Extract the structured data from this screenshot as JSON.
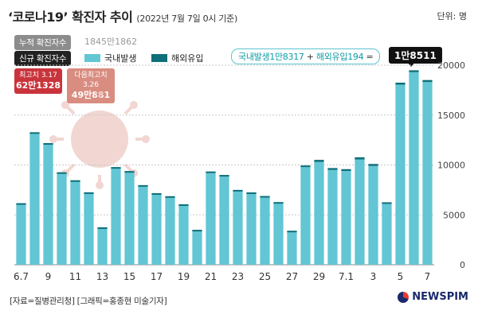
{
  "header": {
    "title_main": "‘코로나19’ 확진자 추이",
    "title_sub": "(2022년 7월 7일 0시 기준)",
    "unit": "단위: 명"
  },
  "summary": {
    "cumulative_label": "누적 확진자수",
    "cumulative_value": "1845만1862",
    "new_label": "신규 확진자수"
  },
  "legend": {
    "domestic": "국내발생",
    "imported": "해외유입"
  },
  "highlight": {
    "domestic": "국내발생1만8317",
    "plus": "+",
    "imported": "해외유입194",
    "equals": "=",
    "total": "1만8511"
  },
  "peaks": [
    {
      "label": "최고치 3.17",
      "value": "62만1328"
    },
    {
      "label": "다음최고치 3.26",
      "value": "49만881"
    }
  ],
  "footer": {
    "source": "[자료=질병관리청] [그래픽=홍종현 미술기자]",
    "logo": "NEWSPIM"
  },
  "colors": {
    "domestic": "#62c6d4",
    "imported": "#0e6f78",
    "peak1": "#c9343c",
    "peak2": "#d98c80",
    "grid": "#c8c8c8"
  },
  "chart_data": {
    "type": "bar",
    "stacked": true,
    "title": "‘코로나19’ 확진자 추이",
    "categories": [
      "6.7",
      "6.8",
      "6.9",
      "6.10",
      "6.11",
      "6.12",
      "6.13",
      "6.14",
      "6.15",
      "6.16",
      "6.17",
      "6.18",
      "6.19",
      "6.20",
      "6.21",
      "6.22",
      "6.23",
      "6.24",
      "6.25",
      "6.26",
      "6.27",
      "6.28",
      "6.29",
      "6.30",
      "7.1",
      "7.2",
      "7.3",
      "7.4",
      "7.5",
      "7.6",
      "7.7"
    ],
    "x_tick_labels": [
      "6.7",
      "",
      "9",
      "",
      "11",
      "",
      "13",
      "",
      "15",
      "",
      "17",
      "",
      "19",
      "",
      "21",
      "",
      "23",
      "",
      "25",
      "",
      "27",
      "",
      "29",
      "",
      "7.1",
      "",
      "3",
      "",
      "5",
      "",
      "7"
    ],
    "series": [
      {
        "name": "국내발생",
        "values": [
          6100,
          13200,
          12100,
          9200,
          8400,
          7200,
          3700,
          9700,
          9300,
          7900,
          7100,
          6800,
          6000,
          3450,
          9250,
          8900,
          7400,
          7150,
          6800,
          6200,
          3350,
          9800,
          10300,
          9500,
          9400,
          10550,
          9900,
          6150,
          18050,
          19300,
          18317
        ]
      },
      {
        "name": "해외유입",
        "values": [
          70,
          80,
          90,
          70,
          70,
          60,
          50,
          90,
          90,
          80,
          70,
          70,
          60,
          50,
          100,
          100,
          100,
          100,
          90,
          80,
          60,
          150,
          210,
          190,
          180,
          220,
          200,
          110,
          200,
          190,
          194
        ]
      }
    ],
    "y_ticks": [
      0,
      5000,
      10000,
      15000,
      20000
    ],
    "y_tick_labels": [
      "0",
      "5000",
      "10000",
      "15000",
      "20000"
    ],
    "ylim": [
      0,
      20000
    ],
    "xlabel": "",
    "ylabel": "",
    "legend_position": "top-left",
    "grid": true
  }
}
